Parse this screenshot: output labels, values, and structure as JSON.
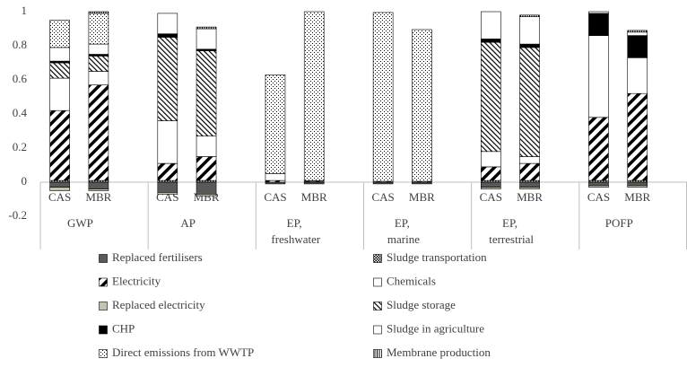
{
  "chart_data": {
    "type": "stacked-bar",
    "groups": [
      {
        "name": "GWP",
        "categories": [
          "CAS",
          "MBR"
        ]
      },
      {
        "name": "AP",
        "categories": [
          "CAS",
          "MBR"
        ]
      },
      {
        "name": "EP, freshwater",
        "categories": [
          "CAS",
          "MBR"
        ]
      },
      {
        "name": "EP, marine",
        "categories": [
          "CAS",
          "MBR"
        ]
      },
      {
        "name": "EP, terrestrial",
        "categories": [
          "CAS",
          "MBR"
        ]
      },
      {
        "name": "POFP",
        "categories": [
          "CAS",
          "MBR"
        ]
      }
    ],
    "ylim": [
      -0.2,
      1
    ],
    "yticks": [
      -0.2,
      0,
      0.2,
      0.4,
      0.6,
      0.8,
      1
    ],
    "grid": false,
    "series": [
      {
        "name": "Replaced fertilisers",
        "color": "#595959",
        "pattern": "solid",
        "values": [
          -0.03,
          -0.04,
          -0.06,
          -0.07,
          -0.01,
          -0.01,
          -0.01,
          -0.01,
          -0.03,
          -0.03,
          -0.02,
          -0.02
        ]
      },
      {
        "name": "Sludge transportation",
        "color": "#000000",
        "pattern": "checker",
        "values": [
          0.01,
          0.01,
          0.01,
          0.01,
          0,
          0,
          0,
          0,
          0.01,
          0.01,
          0.01,
          0.01
        ]
      },
      {
        "name": "Electricity",
        "color": "#000000",
        "pattern": "diagonal-thick",
        "values": [
          0.41,
          0.56,
          0.1,
          0.14,
          0.01,
          0.005,
          0.005,
          0.005,
          0.08,
          0.1,
          0.37,
          0.51
        ]
      },
      {
        "name": "Chemicals",
        "color": "#ffffff",
        "pattern": "solid",
        "values": [
          0.19,
          0.08,
          0.25,
          0.12,
          0.04,
          0.005,
          0,
          0,
          0.09,
          0.04,
          0.48,
          0.21
        ]
      },
      {
        "name": "Replaced electricity",
        "color": "#c4c4ac",
        "pattern": "solid",
        "values": [
          -0.02,
          -0.01,
          -0.01,
          -0.01,
          0,
          0,
          0,
          0,
          -0.01,
          -0.01,
          -0.01,
          -0.01
        ]
      },
      {
        "name": "Sludge storage",
        "color": "#000000",
        "pattern": "diagonal-thin",
        "values": [
          0.09,
          0.09,
          0.49,
          0.5,
          0,
          0,
          0,
          0,
          0.64,
          0.64,
          0,
          0
        ]
      },
      {
        "name": "CHP",
        "color": "#000000",
        "pattern": "solid",
        "values": [
          0.01,
          0.01,
          0.02,
          0.01,
          0,
          0,
          0,
          0,
          0.02,
          0.02,
          0.13,
          0.13
        ]
      },
      {
        "name": "Sludge in agriculture",
        "color": "#ffffff",
        "pattern": "solid",
        "values": [
          0.08,
          0.06,
          0.12,
          0.12,
          0,
          0,
          0,
          0,
          0.16,
          0.16,
          0.01,
          0.02
        ]
      },
      {
        "name": "Direct emissions from WWTP",
        "color": "#000000",
        "pattern": "dots",
        "values": [
          0.16,
          0.18,
          0,
          0,
          0.58,
          0.99,
          0.99,
          0.89,
          0,
          0,
          0,
          0
        ]
      },
      {
        "name": "Membrane production",
        "color": "#000000",
        "pattern": "vertical",
        "values": [
          0,
          0.01,
          0,
          0.01,
          0,
          0,
          0,
          0,
          0,
          0.01,
          0,
          0.01
        ]
      }
    ]
  }
}
